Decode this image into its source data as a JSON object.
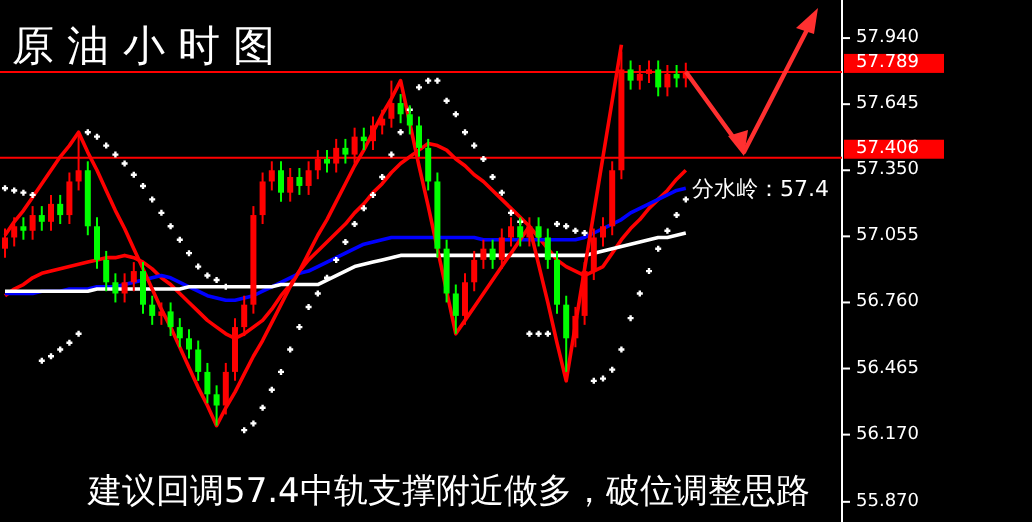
{
  "chart_data": {
    "type": "candlestick",
    "title": "原 油 小 时 图",
    "categories": [
      null,
      null,
      null,
      null,
      null,
      null,
      null,
      null,
      null,
      null,
      null,
      null,
      null,
      null,
      null,
      null,
      null,
      null,
      null,
      null,
      null,
      null,
      null,
      null,
      null,
      null,
      null,
      null,
      null,
      null,
      null,
      null,
      null,
      null,
      null,
      null,
      null,
      null,
      null,
      null,
      null,
      null,
      null,
      null,
      null,
      null,
      null,
      null,
      null,
      null,
      null,
      null,
      null,
      null,
      null,
      null,
      null,
      null,
      null,
      null,
      null,
      null,
      null,
      null,
      null,
      null,
      null,
      null,
      null,
      null,
      null,
      null,
      null,
      null,
      null
    ],
    "ohlc": [
      [
        57.0,
        57.09,
        56.96,
        57.05
      ],
      [
        57.05,
        57.14,
        57.01,
        57.1
      ],
      [
        57.1,
        57.14,
        57.04,
        57.08
      ],
      [
        57.08,
        57.19,
        57.04,
        57.15
      ],
      [
        57.15,
        57.19,
        57.08,
        57.12
      ],
      [
        57.12,
        57.24,
        57.08,
        57.2
      ],
      [
        57.2,
        57.24,
        57.11,
        57.15
      ],
      [
        57.15,
        57.34,
        57.11,
        57.3
      ],
      [
        57.3,
        57.52,
        57.26,
        57.35
      ],
      [
        57.35,
        57.39,
        57.06,
        57.1
      ],
      [
        57.1,
        57.14,
        56.91,
        56.95
      ],
      [
        56.95,
        56.99,
        56.81,
        56.85
      ],
      [
        56.85,
        56.89,
        56.76,
        56.8
      ],
      [
        56.8,
        56.89,
        56.76,
        56.85
      ],
      [
        56.85,
        56.94,
        56.81,
        56.9
      ],
      [
        56.9,
        56.94,
        56.71,
        56.75
      ],
      [
        56.75,
        56.79,
        56.66,
        56.7
      ],
      [
        56.7,
        56.76,
        56.66,
        56.72
      ],
      [
        56.72,
        56.76,
        56.61,
        56.65
      ],
      [
        56.65,
        56.69,
        56.56,
        56.6
      ],
      [
        56.6,
        56.64,
        56.51,
        56.55
      ],
      [
        56.55,
        56.59,
        56.41,
        56.45
      ],
      [
        56.45,
        56.49,
        56.31,
        56.35
      ],
      [
        56.35,
        56.39,
        56.21,
        56.3
      ],
      [
        56.3,
        56.49,
        56.26,
        56.45
      ],
      [
        56.45,
        56.69,
        56.41,
        56.65
      ],
      [
        56.65,
        56.79,
        56.61,
        56.75
      ],
      [
        56.75,
        57.19,
        56.71,
        57.15
      ],
      [
        57.15,
        57.34,
        57.11,
        57.3
      ],
      [
        57.3,
        57.39,
        57.26,
        57.35
      ],
      [
        57.35,
        57.39,
        57.21,
        57.25
      ],
      [
        57.25,
        57.36,
        57.21,
        57.32
      ],
      [
        57.32,
        57.36,
        57.24,
        57.28
      ],
      [
        57.28,
        57.39,
        57.24,
        57.35
      ],
      [
        57.35,
        57.44,
        57.31,
        57.4
      ],
      [
        57.4,
        57.44,
        57.34,
        57.38
      ],
      [
        57.38,
        57.49,
        57.34,
        57.45
      ],
      [
        57.45,
        57.49,
        57.38,
        57.42
      ],
      [
        57.42,
        57.54,
        57.38,
        57.5
      ],
      [
        57.5,
        57.54,
        57.44,
        57.48
      ],
      [
        57.48,
        57.59,
        57.44,
        57.55
      ],
      [
        57.55,
        57.62,
        57.51,
        57.58
      ],
      [
        57.58,
        57.75,
        57.54,
        57.65
      ],
      [
        57.65,
        57.69,
        57.56,
        57.6
      ],
      [
        57.6,
        57.64,
        57.51,
        57.55
      ],
      [
        57.55,
        57.59,
        57.41,
        57.45
      ],
      [
        57.45,
        57.49,
        57.26,
        57.3
      ],
      [
        57.3,
        57.34,
        56.96,
        57.0
      ],
      [
        57.0,
        57.04,
        56.76,
        56.8
      ],
      [
        56.8,
        56.84,
        56.62,
        56.7
      ],
      [
        56.7,
        56.89,
        56.66,
        56.85
      ],
      [
        56.85,
        56.99,
        56.81,
        56.95
      ],
      [
        56.95,
        57.04,
        56.91,
        57.0
      ],
      [
        57.0,
        57.04,
        56.91,
        56.95
      ],
      [
        56.95,
        57.09,
        56.91,
        57.05
      ],
      [
        57.05,
        57.14,
        57.01,
        57.1
      ],
      [
        57.1,
        57.14,
        57.01,
        57.05
      ],
      [
        57.05,
        57.14,
        57.01,
        57.1
      ],
      [
        57.1,
        57.14,
        57.01,
        57.05
      ],
      [
        57.05,
        57.09,
        56.91,
        56.95
      ],
      [
        56.95,
        56.99,
        56.71,
        56.75
      ],
      [
        56.75,
        56.79,
        56.45,
        56.6
      ],
      [
        56.6,
        56.74,
        56.56,
        56.7
      ],
      [
        56.7,
        56.94,
        56.66,
        56.9
      ],
      [
        56.9,
        57.09,
        56.86,
        57.05
      ],
      [
        57.05,
        57.14,
        57.01,
        57.1
      ],
      [
        57.1,
        57.39,
        57.06,
        57.35
      ],
      [
        57.35,
        57.88,
        57.31,
        57.8
      ],
      [
        57.8,
        57.84,
        57.71,
        57.75
      ],
      [
        57.75,
        57.82,
        57.71,
        57.78
      ],
      [
        57.78,
        57.84,
        57.74,
        57.8
      ],
      [
        57.8,
        57.84,
        57.68,
        57.72
      ],
      [
        57.72,
        57.82,
        57.68,
        57.78
      ],
      [
        57.78,
        57.82,
        57.72,
        57.76
      ],
      [
        57.76,
        57.83,
        57.72,
        57.79
      ]
    ],
    "colors": [
      "#ff0000",
      "#ff0000",
      "#00ff00",
      "#ff0000",
      "#00ff00",
      "#ff0000",
      "#00ff00",
      "#ff0000",
      "#ff0000",
      "#00ff00",
      "#00ff00",
      "#00ff00",
      "#00ff00",
      "#ff0000",
      "#ff0000",
      "#00ff00",
      "#00ff00",
      "#ff0000",
      "#00ff00",
      "#00ff00",
      "#00ff00",
      "#00ff00",
      "#00ff00",
      "#00ff00",
      "#ff0000",
      "#ff0000",
      "#ff0000",
      "#ff0000",
      "#ff0000",
      "#ff0000",
      "#00ff00",
      "#ff0000",
      "#00ff00",
      "#ff0000",
      "#ff0000",
      "#00ff00",
      "#ff0000",
      "#00ff00",
      "#ff0000",
      "#00ff00",
      "#ff0000",
      "#ff0000",
      "#ff0000",
      "#00ff00",
      "#00ff00",
      "#00ff00",
      "#00ff00",
      "#00ff00",
      "#00ff00",
      "#00ff00",
      "#ff0000",
      "#ff0000",
      "#ff0000",
      "#00ff00",
      "#ff0000",
      "#ff0000",
      "#00ff00",
      "#ff0000",
      "#00ff00",
      "#00ff00",
      "#00ff00",
      "#00ff00",
      "#ff0000",
      "#ff0000",
      "#ff0000",
      "#ff0000",
      "#ff0000",
      "#ff0000",
      "#00ff00",
      "#ff0000",
      "#ff0000",
      "#00ff00",
      "#ff0000",
      "#00ff00",
      "#ff0000"
    ],
    "series": [
      {
        "type": "line",
        "color": "#ff0000",
        "values": [
          56.79,
          56.82,
          56.84,
          56.87,
          56.89,
          56.9,
          56.91,
          56.92,
          56.93,
          56.94,
          56.95,
          56.96,
          56.96,
          56.97,
          56.96,
          56.94,
          56.91,
          56.87,
          56.84,
          56.8,
          56.76,
          56.72,
          56.68,
          56.65,
          56.62,
          56.6,
          56.62,
          56.65,
          56.68,
          56.73,
          56.79,
          56.84,
          56.9,
          56.95,
          56.99,
          57.03,
          57.07,
          57.11,
          57.16,
          57.2,
          57.25,
          57.29,
          57.34,
          57.38,
          57.41,
          57.44,
          57.47,
          57.46,
          57.44,
          57.4,
          57.37,
          57.33,
          57.3,
          57.26,
          57.22,
          57.18,
          57.14,
          57.1,
          57.05,
          57.0,
          56.95,
          56.92,
          56.9,
          56.88,
          56.9,
          56.92,
          56.98,
          57.04,
          57.09,
          57.13,
          57.18,
          57.22,
          57.26,
          57.31,
          57.35
        ]
      },
      {
        "type": "line",
        "color": "#0000ff",
        "values": [
          56.8,
          56.8,
          56.8,
          56.8,
          56.81,
          56.81,
          56.81,
          56.82,
          56.82,
          56.82,
          56.83,
          56.83,
          56.83,
          56.84,
          56.85,
          56.86,
          56.87,
          56.88,
          56.87,
          56.85,
          56.83,
          56.81,
          56.79,
          56.78,
          56.77,
          56.77,
          56.78,
          56.79,
          56.81,
          56.83,
          56.85,
          56.87,
          56.89,
          56.9,
          56.92,
          56.94,
          56.96,
          56.98,
          57.0,
          57.02,
          57.03,
          57.04,
          57.05,
          57.05,
          57.05,
          57.05,
          57.05,
          57.05,
          57.05,
          57.05,
          57.05,
          57.05,
          57.04,
          57.04,
          57.04,
          57.04,
          57.04,
          57.04,
          57.04,
          57.04,
          57.04,
          57.04,
          57.04,
          57.05,
          57.07,
          57.09,
          57.11,
          57.13,
          57.16,
          57.18,
          57.2,
          57.22,
          57.24,
          57.26,
          57.27
        ]
      },
      {
        "type": "line",
        "color": "#ffffff",
        "values": [
          56.81,
          56.81,
          56.81,
          56.81,
          56.81,
          56.81,
          56.81,
          56.81,
          56.81,
          56.81,
          56.82,
          56.82,
          56.82,
          56.82,
          56.82,
          56.82,
          56.82,
          56.82,
          56.82,
          56.82,
          56.83,
          56.83,
          56.83,
          56.83,
          56.83,
          56.83,
          56.83,
          56.83,
          56.83,
          56.83,
          56.84,
          56.84,
          56.84,
          56.84,
          56.84,
          56.86,
          56.88,
          56.9,
          56.92,
          56.93,
          56.94,
          56.95,
          56.96,
          56.97,
          56.97,
          56.97,
          56.97,
          56.97,
          56.97,
          56.97,
          56.97,
          56.97,
          56.97,
          56.97,
          56.97,
          56.97,
          56.97,
          56.97,
          56.97,
          56.97,
          56.97,
          56.97,
          56.97,
          56.97,
          56.98,
          56.99,
          57.0,
          57.01,
          57.02,
          57.03,
          57.04,
          57.05,
          57.05,
          57.06,
          57.07
        ]
      },
      {
        "type": "line",
        "color": "#ff0000",
        "values": [
          57.06,
          57.12,
          57.17,
          57.23,
          57.29,
          57.35,
          57.41,
          57.46,
          57.52,
          57.43,
          57.35,
          57.26,
          57.17,
          57.09,
          57.0,
          56.91,
          56.82,
          56.73,
          56.65,
          56.56,
          56.47,
          56.38,
          56.3,
          56.21,
          56.29,
          56.36,
          56.44,
          56.52,
          56.59,
          56.67,
          56.75,
          56.83,
          56.9,
          56.98,
          57.06,
          57.13,
          57.21,
          57.29,
          57.37,
          57.44,
          57.52,
          57.6,
          57.67,
          57.75,
          57.56,
          57.37,
          57.19,
          57.0,
          56.81,
          56.62,
          56.68,
          56.74,
          56.8,
          56.86,
          56.92,
          56.98,
          57.04,
          57.1,
          56.93,
          56.76,
          56.58,
          56.41,
          56.66,
          56.91,
          57.16,
          57.41,
          57.66,
          57.91,
          null,
          null,
          null,
          null,
          null,
          null,
          null
        ]
      },
      {
        "type": "scatter",
        "color": "#ffffff",
        "marker": "cross",
        "values": [
          57.27,
          57.26,
          57.25,
          57.24,
          56.5,
          56.52,
          56.55,
          56.58,
          56.62,
          57.52,
          57.5,
          57.46,
          57.42,
          57.38,
          57.33,
          57.28,
          57.22,
          57.16,
          57.1,
          57.04,
          56.98,
          56.92,
          56.88,
          56.86,
          56.83,
          null,
          56.19,
          56.22,
          56.29,
          56.37,
          56.45,
          56.55,
          56.65,
          56.74,
          56.8,
          56.87,
          56.95,
          57.03,
          57.11,
          57.18,
          57.24,
          57.32,
          57.42,
          57.52,
          57.62,
          57.72,
          57.75,
          57.75,
          57.66,
          57.6,
          57.52,
          57.46,
          57.4,
          57.32,
          57.25,
          57.16,
          57.12,
          56.62,
          56.62,
          56.62,
          57.11,
          57.1,
          57.08,
          57.07,
          56.41,
          56.42,
          56.46,
          56.55,
          56.69,
          56.8,
          56.9,
          57.0,
          57.08,
          57.15,
          57.22
        ]
      }
    ],
    "ylim": [
      55.78,
      58.11
    ],
    "yticks": [
      {
        "value": 57.94,
        "label": "57.940"
      },
      {
        "value": 57.645,
        "label": "57.645"
      },
      {
        "value": 57.35,
        "label": "57.350"
      },
      {
        "value": 57.055,
        "label": "57.055"
      },
      {
        "value": 56.76,
        "label": "56.760"
      },
      {
        "value": 56.465,
        "label": "56.465"
      },
      {
        "value": 56.17,
        "label": "56.170"
      },
      {
        "value": 55.87,
        "label": "55.870"
      }
    ],
    "tick_labels": "y",
    "ref_lines": [
      {
        "axis": "y",
        "value": 57.789,
        "label": "57.789",
        "color": "#ff0000"
      },
      {
        "axis": "y",
        "value": 57.406,
        "label": "57.406",
        "color": "#ff0000"
      }
    ],
    "annotations": [
      "分水岭：57.4",
      "建议回调57.4中轨支撑附近做多，破位调整思路"
    ]
  }
}
